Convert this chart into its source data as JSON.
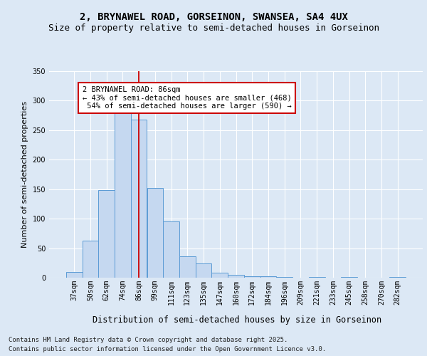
{
  "title_line1": "2, BRYNAWEL ROAD, GORSEINON, SWANSEA, SA4 4UX",
  "title_line2": "Size of property relative to semi-detached houses in Gorseinon",
  "xlabel": "Distribution of semi-detached houses by size in Gorseinon",
  "ylabel": "Number of semi-detached properties",
  "categories": [
    "37sqm",
    "50sqm",
    "62sqm",
    "74sqm",
    "86sqm",
    "99sqm",
    "111sqm",
    "123sqm",
    "135sqm",
    "147sqm",
    "160sqm",
    "172sqm",
    "184sqm",
    "196sqm",
    "209sqm",
    "221sqm",
    "233sqm",
    "245sqm",
    "258sqm",
    "270sqm",
    "282sqm"
  ],
  "values": [
    10,
    63,
    148,
    280,
    268,
    152,
    95,
    36,
    24,
    8,
    5,
    2,
    2,
    1,
    0,
    1,
    0,
    1,
    0,
    0,
    1
  ],
  "bar_color": "#c5d8f0",
  "bar_edge_color": "#5b9bd5",
  "vline_index": 4,
  "vline_color": "#cc0000",
  "annotation_text": "2 BRYNAWEL ROAD: 86sqm\n← 43% of semi-detached houses are smaller (468)\n 54% of semi-detached houses are larger (590) →",
  "annotation_box_color": "#ffffff",
  "annotation_box_edge": "#cc0000",
  "ylim": [
    0,
    350
  ],
  "yticks": [
    0,
    50,
    100,
    150,
    200,
    250,
    300,
    350
  ],
  "footer_line1": "Contains HM Land Registry data © Crown copyright and database right 2025.",
  "footer_line2": "Contains public sector information licensed under the Open Government Licence v3.0.",
  "bg_color": "#dce8f5",
  "plot_bg_color": "#dce8f5",
  "grid_color": "#ffffff",
  "title_fontsize": 10,
  "subtitle_fontsize": 9,
  "tick_fontsize": 7,
  "ylabel_fontsize": 8,
  "xlabel_fontsize": 8.5,
  "annotation_fontsize": 7.5,
  "footer_fontsize": 6.5
}
